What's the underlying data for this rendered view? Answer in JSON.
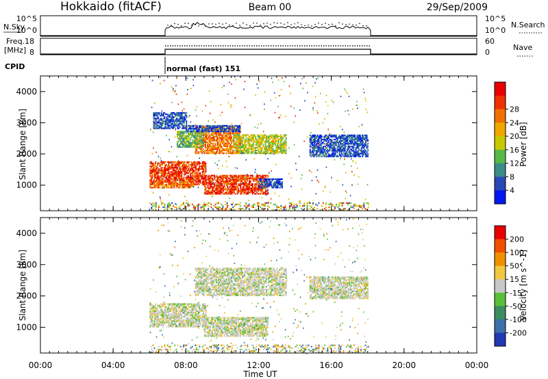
{
  "header": {
    "title": "Hokkaido (fitACF)",
    "beam": "Beam 00",
    "date": "29/Sep/2009"
  },
  "noise_panel": {
    "left_label": "N.Sky",
    "right_label": "N.Search",
    "left_ticks": [
      "10^5",
      "10^0"
    ],
    "right_ticks": [
      "10^5",
      "10^0"
    ]
  },
  "freq_panel": {
    "left_label_line1": "Freq.",
    "left_label_line2": "[MHz]",
    "right_label": "Nave",
    "left_ticks": [
      "18",
      "8"
    ],
    "right_ticks": [
      "60",
      "0"
    ]
  },
  "cpid": {
    "label": "CPID",
    "mode_text": "normal (fast) 151"
  },
  "chart_data": [
    {
      "type": "heatmap",
      "name": "power",
      "ylabel": "Slant Range [km]",
      "y_ticks": [
        1000,
        2000,
        3000,
        4000
      ],
      "ylim": [
        180,
        4500
      ],
      "x_ticks_hours": [
        0,
        4,
        8,
        12,
        16,
        20,
        24
      ],
      "xlim_hours": [
        0,
        24
      ],
      "colorbar": {
        "label": "Power [dB]",
        "ticks": [
          "4",
          "8",
          "12",
          "16",
          "20",
          "24",
          "28"
        ],
        "colors": [
          "#0018f0",
          "#2848b8",
          "#3c8c88",
          "#58b848",
          "#c8c800",
          "#f0a800",
          "#f07000",
          "#f03000",
          "#e80000"
        ]
      },
      "regions": [
        {
          "t": [
            6.0,
            9.1
          ],
          "r": [
            1000,
            1750
          ],
          "c": "red"
        },
        {
          "t": [
            6.0,
            8.4
          ],
          "r": [
            900,
            1100
          ],
          "c": "orange"
        },
        {
          "t": [
            9.0,
            12.5
          ],
          "r": [
            700,
            1300
          ],
          "c": "red"
        },
        {
          "t": [
            8.5,
            11.0
          ],
          "r": [
            2000,
            2900
          ],
          "c": "orange"
        },
        {
          "t": [
            7.5,
            9.0
          ],
          "r": [
            2200,
            2700
          ],
          "c": "green"
        },
        {
          "t": [
            10.6,
            13.5
          ],
          "r": [
            2000,
            2600
          ],
          "c": "yellow"
        },
        {
          "t": [
            8.0,
            11.0
          ],
          "r": [
            2700,
            2900
          ],
          "c": "blue"
        },
        {
          "t": [
            12.0,
            13.3
          ],
          "r": [
            900,
            1200
          ],
          "c": "blue"
        },
        {
          "t": [
            14.8,
            18.0
          ],
          "r": [
            1900,
            2600
          ],
          "c": "blue"
        },
        {
          "t": [
            6.2,
            8.0
          ],
          "r": [
            2800,
            3300
          ],
          "c": "blue"
        },
        {
          "t": [
            6.0,
            18.0
          ],
          "r": [
            180,
            450
          ],
          "c": "mixed"
        }
      ]
    },
    {
      "type": "heatmap",
      "name": "velocity",
      "ylabel": "Slant Range [km]",
      "xlabel": "Time UT",
      "x_tick_labels": [
        "00:00",
        "04:00",
        "08:00",
        "12:00",
        "16:00",
        "20:00",
        "00:00"
      ],
      "y_ticks": [
        1000,
        2000,
        3000,
        4000
      ],
      "ylim": [
        180,
        4500
      ],
      "xlim_hours": [
        0,
        24
      ],
      "colorbar": {
        "label": "Velocity [m s^-1]",
        "ticks": [
          "200",
          "100",
          "50",
          "15",
          "-15",
          "-50",
          "-100",
          "-200"
        ],
        "colors": [
          "#2038b0",
          "#3c70a8",
          "#3c8c60",
          "#58c038",
          "#c8c8c8",
          "#f0c840",
          "#f09000",
          "#f05000",
          "#e80000"
        ]
      },
      "regions": [
        {
          "t": [
            6.0,
            9.1
          ],
          "r": [
            1000,
            1750
          ],
          "c": "grey"
        },
        {
          "t": [
            9.0,
            12.5
          ],
          "r": [
            700,
            1300
          ],
          "c": "grey"
        },
        {
          "t": [
            8.5,
            13.5
          ],
          "r": [
            2000,
            2900
          ],
          "c": "grey"
        },
        {
          "t": [
            14.8,
            18.0
          ],
          "r": [
            1900,
            2600
          ],
          "c": "grey"
        },
        {
          "t": [
            6.0,
            18.0
          ],
          "r": [
            180,
            450
          ],
          "c": "mixed"
        }
      ]
    }
  ]
}
